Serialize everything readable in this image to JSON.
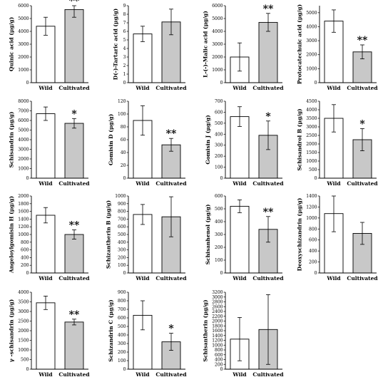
{
  "chart_data": [
    {
      "type": "bar",
      "categories": [
        "Wild",
        "Cultivated"
      ],
      "values": [
        4400,
        5700
      ],
      "errors": [
        700,
        600
      ],
      "ylim": [
        0,
        6000
      ],
      "yticks": [
        0,
        1000,
        2000,
        3000,
        4000,
        5000,
        6000
      ],
      "ylabel": "Quinic acid (μg/g)",
      "sig": [
        "",
        "**"
      ],
      "colors": [
        "#ffffff",
        "#c8c8c8"
      ]
    },
    {
      "type": "bar",
      "categories": [
        "Wild",
        "Cultivated"
      ],
      "values": [
        5.7,
        7.1
      ],
      "errors": [
        0.9,
        1.5
      ],
      "ylim": [
        0,
        9
      ],
      "yticks": [
        0,
        1,
        2,
        3,
        4,
        5,
        6,
        7,
        8,
        9
      ],
      "ylabel": "D(-)-Tartaric acid (μg/g)",
      "sig": [
        "",
        ""
      ],
      "colors": [
        "#ffffff",
        "#c8c8c8"
      ]
    },
    {
      "type": "bar",
      "categories": [
        "Wild",
        "Cultivated"
      ],
      "values": [
        2000,
        4700
      ],
      "errors": [
        1100,
        700
      ],
      "ylim": [
        0,
        6000
      ],
      "yticks": [
        0,
        1000,
        2000,
        3000,
        4000,
        5000,
        6000
      ],
      "ylabel": "L-(-)-Malic acid (μg/g)",
      "sig": [
        "",
        "**"
      ],
      "colors": [
        "#ffffff",
        "#c8c8c8"
      ]
    },
    {
      "type": "bar",
      "categories": [
        "Wild",
        "Cultivated"
      ],
      "values": [
        4400,
        2200
      ],
      "errors": [
        800,
        500
      ],
      "ylim": [
        0,
        5500
      ],
      "yticks": [
        0,
        1000,
        2000,
        3000,
        4000,
        5000
      ],
      "ylabel": "Protocatechuic acid (μg/g)",
      "sig": [
        "",
        "**"
      ],
      "colors": [
        "#ffffff",
        "#c8c8c8"
      ]
    },
    {
      "type": "bar",
      "categories": [
        "Wild",
        "Cultivated"
      ],
      "values": [
        6700,
        5700
      ],
      "errors": [
        700,
        500
      ],
      "ylim": [
        0,
        8000
      ],
      "yticks": [
        0,
        1000,
        2000,
        3000,
        4000,
        5000,
        6000,
        7000,
        8000
      ],
      "ylabel": "Schisandrin (μg/g)",
      "sig": [
        "",
        "*"
      ],
      "colors": [
        "#ffffff",
        "#c8c8c8"
      ]
    },
    {
      "type": "bar",
      "categories": [
        "Wild",
        "Cultivated"
      ],
      "values": [
        90,
        52
      ],
      "errors": [
        23,
        10
      ],
      "ylim": [
        0,
        120
      ],
      "yticks": [
        0,
        20,
        40,
        60,
        80,
        100,
        120
      ],
      "ylabel": "Gomisin D (μg/g)",
      "sig": [
        "",
        "**"
      ],
      "colors": [
        "#ffffff",
        "#c8c8c8"
      ]
    },
    {
      "type": "bar",
      "categories": [
        "Wild",
        "Cultivated"
      ],
      "values": [
        560,
        390
      ],
      "errors": [
        90,
        130
      ],
      "ylim": [
        0,
        700
      ],
      "yticks": [
        0,
        100,
        200,
        300,
        400,
        500,
        600,
        700
      ],
      "ylabel": "Gomisin J (μg/g)",
      "sig": [
        "",
        "*"
      ],
      "colors": [
        "#ffffff",
        "#c8c8c8"
      ]
    },
    {
      "type": "bar",
      "categories": [
        "Wild",
        "Cultivated"
      ],
      "values": [
        3500,
        2250
      ],
      "errors": [
        800,
        650
      ],
      "ylim": [
        0,
        4500
      ],
      "yticks": [
        0,
        500,
        1000,
        1500,
        2000,
        2500,
        3000,
        3500,
        4000,
        4500
      ],
      "ylabel": "Schisandrol B (μg/g)",
      "sig": [
        "",
        "*"
      ],
      "colors": [
        "#ffffff",
        "#c8c8c8"
      ]
    },
    {
      "type": "bar",
      "categories": [
        "Wild",
        "Cultivated"
      ],
      "values": [
        1500,
        1000
      ],
      "errors": [
        200,
        120
      ],
      "ylim": [
        0,
        2000
      ],
      "yticks": [
        0,
        200,
        400,
        600,
        800,
        1000,
        1200,
        1400,
        1600,
        1800,
        2000
      ],
      "ylabel": "Angeloylgomisin H (μg/g)",
      "sig": [
        "",
        "**"
      ],
      "colors": [
        "#ffffff",
        "#c8c8c8"
      ]
    },
    {
      "type": "bar",
      "categories": [
        "Wild",
        "Cultivated"
      ],
      "values": [
        760,
        730
      ],
      "errors": [
        130,
        260
      ],
      "ylim": [
        0,
        1000
      ],
      "yticks": [
        0,
        100,
        200,
        300,
        400,
        500,
        600,
        700,
        800,
        900,
        1000
      ],
      "ylabel": "Schizantherin B (μg/g)",
      "sig": [
        "",
        ""
      ],
      "colors": [
        "#ffffff",
        "#c8c8c8"
      ]
    },
    {
      "type": "bar",
      "categories": [
        "Wild",
        "Cultivated"
      ],
      "values": [
        520,
        340
      ],
      "errors": [
        50,
        100
      ],
      "ylim": [
        0,
        600
      ],
      "yticks": [
        0,
        100,
        200,
        300,
        400,
        500,
        600
      ],
      "ylabel": "Schisanhenol (μg/g)",
      "sig": [
        "",
        "**"
      ],
      "colors": [
        "#ffffff",
        "#c8c8c8"
      ]
    },
    {
      "type": "bar",
      "categories": [
        "Wild",
        "Cultivated"
      ],
      "values": [
        1080,
        720
      ],
      "errors": [
        330,
        200
      ],
      "ylim": [
        0,
        1400
      ],
      "yticks": [
        0,
        200,
        400,
        600,
        800,
        1000,
        1200,
        1400
      ],
      "ylabel": "Deoxyschizandrin (μg/g)",
      "sig": [
        "",
        ""
      ],
      "colors": [
        "#ffffff",
        "#c8c8c8"
      ]
    },
    {
      "type": "bar",
      "categories": [
        "Wild",
        "Cultivated"
      ],
      "values": [
        3450,
        2450
      ],
      "errors": [
        350,
        150
      ],
      "ylim": [
        0,
        4000
      ],
      "yticks": [
        0,
        500,
        1000,
        1500,
        2000,
        2500,
        3000,
        3500,
        4000
      ],
      "ylabel": "γ -schisandrin (μg/g)",
      "sig": [
        "",
        "**"
      ],
      "colors": [
        "#ffffff",
        "#c8c8c8"
      ]
    },
    {
      "type": "bar",
      "categories": [
        "Wild",
        "Cultivated"
      ],
      "values": [
        630,
        320
      ],
      "errors": [
        170,
        100
      ],
      "ylim": [
        0,
        900
      ],
      "yticks": [
        0,
        100,
        200,
        300,
        400,
        500,
        600,
        700,
        800,
        900
      ],
      "ylabel": "Schizandrin C (μg/g)",
      "sig": [
        "",
        "*"
      ],
      "colors": [
        "#ffffff",
        "#c8c8c8"
      ]
    },
    {
      "type": "bar",
      "categories": [
        "Wild",
        "Cultivated"
      ],
      "values": [
        1250,
        1650
      ],
      "errors": [
        900,
        1450
      ],
      "ylim": [
        0,
        3200
      ],
      "yticks": [
        0,
        200,
        400,
        600,
        800,
        1000,
        1200,
        1400,
        1600,
        1800,
        2000,
        2200,
        2400,
        2600,
        2800,
        3000,
        3200
      ],
      "ylabel": "Schisantherin (μg/g)",
      "sig": [
        "",
        ""
      ],
      "colors": [
        "#ffffff",
        "#c8c8c8"
      ]
    }
  ]
}
